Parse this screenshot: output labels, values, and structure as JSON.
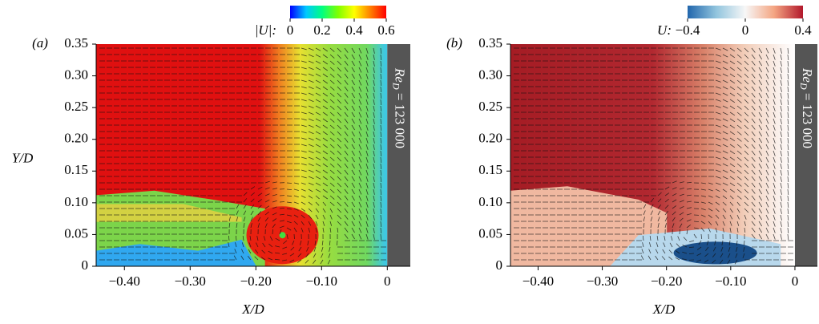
{
  "chart_data": [
    {
      "type": "vector-field",
      "panel_label": "(a)",
      "xlabel": "X/D",
      "ylabel": "Y/D",
      "xlim": [
        -0.443,
        0.035
      ],
      "ylim": [
        0,
        0.35
      ],
      "xticks": [
        {
          "value": -0.4,
          "label": "−0.40"
        },
        {
          "value": -0.3,
          "label": "−0.30"
        },
        {
          "value": -0.2,
          "label": "−0.20"
        },
        {
          "value": -0.1,
          "label": "−0.10"
        },
        0
      ],
      "yticks": [
        0,
        {
          "value": 0.05,
          "label": "0.05"
        },
        {
          "value": 0.1,
          "label": "0.10"
        },
        0.15,
        {
          "value": 0.2,
          "label": "0.20"
        },
        0.25,
        {
          "value": 0.3,
          "label": "0.30"
        },
        0.35
      ],
      "colorbar_label": "|U|:",
      "clim": [
        0,
        0.6
      ],
      "cticks": [
        0,
        0.2,
        0.4,
        0.6
      ],
      "colormap": [
        "#0000ff",
        "#00c8ff",
        "#00ff80",
        "#80ff00",
        "#ffff00",
        "#ff8000",
        "#ff0000"
      ],
      "annotation": {
        "main": "Re",
        "sub": "D",
        "rest": " = 123 000"
      }
    },
    {
      "type": "vector-field",
      "panel_label": "(b)",
      "xlabel": "X/D",
      "xlim": [
        -0.443,
        0.035
      ],
      "ylim": [
        0,
        0.35
      ],
      "xticks": [
        {
          "value": -0.4,
          "label": "−0.40"
        },
        {
          "value": -0.3,
          "label": "−0.30"
        },
        {
          "value": -0.2,
          "label": "−0.20"
        },
        {
          "value": -0.1,
          "label": "−0.10"
        },
        0
      ],
      "yticks": [
        0,
        {
          "value": 0.05,
          "label": "0.05"
        },
        {
          "value": 0.1,
          "label": "0.10"
        },
        0.15,
        {
          "value": 0.2,
          "label": "0.20"
        },
        0.25,
        {
          "value": 0.3,
          "label": "0.30"
        },
        0.35
      ],
      "colorbar_label": "U:",
      "clim": [
        -0.4,
        0.4
      ],
      "cticks": [
        {
          "value": -0.4,
          "label": "−0.4"
        },
        0,
        0.4
      ],
      "colormap": [
        "#2166ac",
        "#92c5de",
        "#f7f7f7",
        "#f4a582",
        "#b2182b"
      ],
      "annotation": {
        "main": "Re",
        "sub": "D",
        "rest": " = 123 000"
      }
    }
  ]
}
